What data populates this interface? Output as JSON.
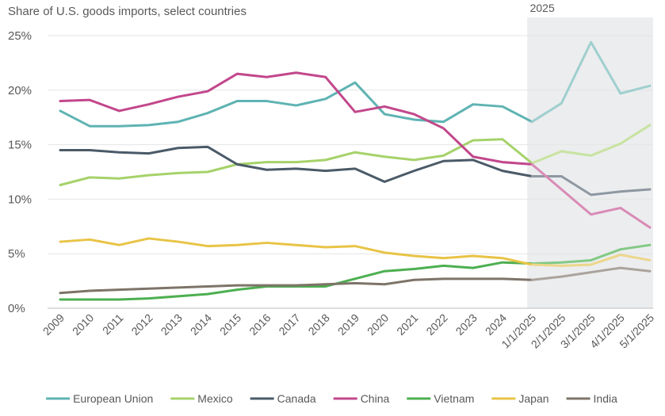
{
  "chart_data": {
    "type": "line",
    "title": "Share of U.S. goods imports, select countries",
    "highlight_label": "2025",
    "xlabel": "",
    "ylabel": "",
    "ylim": [
      0,
      25
    ],
    "y_ticks": [
      "0%",
      "5%",
      "10%",
      "15%",
      "20%",
      "25%"
    ],
    "y_tick_values": [
      0,
      5,
      10,
      15,
      20,
      25
    ],
    "categories": [
      "2009",
      "2010",
      "2011",
      "2012",
      "2013",
      "2014",
      "2015",
      "2016",
      "2017",
      "2018",
      "2019",
      "2020",
      "2021",
      "2022",
      "2023",
      "2024",
      "1/1/2025",
      "2/1/2025",
      "3/1/2025",
      "4/1/2025",
      "5/1/2025"
    ],
    "highlight_start_index": 16,
    "legend_position": "bottom",
    "series": [
      {
        "name": "European Union",
        "color": "#5fb3b3",
        "light_color": "#9fcfcf",
        "values": [
          18.1,
          16.7,
          16.7,
          16.8,
          17.1,
          17.9,
          19.0,
          19.0,
          18.6,
          19.2,
          20.7,
          17.8,
          17.3,
          17.1,
          18.7,
          18.5,
          17.1,
          18.8,
          24.4,
          19.7,
          20.4
        ]
      },
      {
        "name": "Mexico",
        "color": "#a6d26a",
        "light_color": "#c7e3a0",
        "values": [
          11.3,
          12.0,
          11.9,
          12.2,
          12.4,
          12.5,
          13.2,
          13.4,
          13.4,
          13.6,
          14.3,
          13.9,
          13.6,
          14.0,
          15.4,
          15.5,
          13.3,
          14.4,
          14.0,
          15.1,
          16.8
        ]
      },
      {
        "name": "Canada",
        "color": "#4a5a68",
        "light_color": "#8e98a2",
        "values": [
          14.5,
          14.5,
          14.3,
          14.2,
          14.7,
          14.8,
          13.2,
          12.7,
          12.8,
          12.6,
          12.8,
          11.6,
          12.6,
          13.5,
          13.6,
          12.6,
          12.1,
          12.1,
          10.4,
          10.7,
          10.9
        ]
      },
      {
        "name": "China",
        "color": "#c2478b",
        "light_color": "#d98bb6",
        "values": [
          19.0,
          19.1,
          18.1,
          18.7,
          19.4,
          19.9,
          21.5,
          21.2,
          21.6,
          21.2,
          18.0,
          18.5,
          17.8,
          16.5,
          13.9,
          13.4,
          13.2,
          10.9,
          8.6,
          9.2,
          7.4
        ]
      },
      {
        "name": "Vietnam",
        "color": "#4caf50",
        "light_color": "#82c985",
        "values": [
          0.8,
          0.8,
          0.8,
          0.9,
          1.1,
          1.3,
          1.7,
          2.0,
          2.0,
          2.0,
          2.7,
          3.4,
          3.6,
          3.9,
          3.7,
          4.2,
          4.1,
          4.2,
          4.4,
          5.4,
          5.8
        ]
      },
      {
        "name": "Japan",
        "color": "#e8c446",
        "light_color": "#ecd68a",
        "values": [
          6.1,
          6.3,
          5.8,
          6.4,
          6.1,
          5.7,
          5.8,
          6.0,
          5.8,
          5.6,
          5.7,
          5.1,
          4.8,
          4.6,
          4.8,
          4.6,
          4.0,
          3.9,
          4.0,
          4.9,
          4.4
        ]
      },
      {
        "name": "India",
        "color": "#7d7468",
        "light_color": "#aaa49d",
        "values": [
          1.4,
          1.6,
          1.7,
          1.8,
          1.9,
          2.0,
          2.1,
          2.1,
          2.1,
          2.2,
          2.3,
          2.2,
          2.6,
          2.7,
          2.7,
          2.7,
          2.6,
          2.9,
          3.3,
          3.7,
          3.4
        ]
      }
    ]
  }
}
